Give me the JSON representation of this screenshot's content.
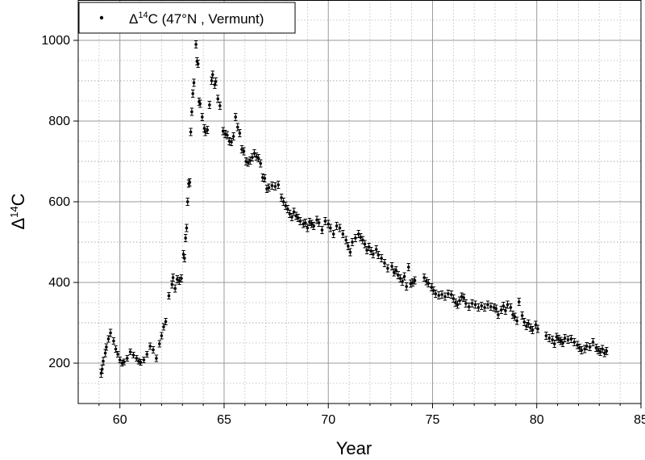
{
  "chart_data": {
    "type": "scatter",
    "title": "",
    "xlabel": "Year",
    "ylabel": {
      "base": "Δ",
      "sup": "14",
      "tail": "C"
    },
    "xlim": [
      58,
      85
    ],
    "ylim": [
      100,
      1100
    ],
    "xticks": [
      "60",
      "65",
      "70",
      "75",
      "80",
      "85"
    ],
    "yticks": [
      "200",
      "400",
      "600",
      "800",
      "1000"
    ],
    "grid": true,
    "error_bars": true,
    "legend": {
      "position": "top-left",
      "entry": {
        "base": "Δ",
        "sup": "14",
        "tail": "C (47°N , Vermunt)"
      }
    },
    "series": [
      {
        "name": "Δ14C (47°N , Vermunt)",
        "color": "#000000",
        "points": [
          [
            59.1,
            175,
            10
          ],
          [
            59.15,
            185,
            10
          ],
          [
            59.2,
            205,
            9
          ],
          [
            59.3,
            225,
            9
          ],
          [
            59.35,
            240,
            8
          ],
          [
            59.45,
            260,
            8
          ],
          [
            59.55,
            275,
            9
          ],
          [
            59.7,
            255,
            8
          ],
          [
            59.8,
            235,
            8
          ],
          [
            59.9,
            222,
            7
          ],
          [
            60.0,
            208,
            7
          ],
          [
            60.1,
            200,
            7
          ],
          [
            60.2,
            203,
            7
          ],
          [
            60.35,
            212,
            7
          ],
          [
            60.5,
            228,
            7
          ],
          [
            60.65,
            220,
            7
          ],
          [
            60.8,
            212,
            7
          ],
          [
            60.9,
            205,
            7
          ],
          [
            61.0,
            202,
            7
          ],
          [
            61.15,
            208,
            7
          ],
          [
            61.3,
            222,
            7
          ],
          [
            61.45,
            242,
            8
          ],
          [
            61.6,
            233,
            8
          ],
          [
            61.75,
            212,
            8
          ],
          [
            61.9,
            248,
            8
          ],
          [
            62.0,
            268,
            8
          ],
          [
            62.1,
            290,
            8
          ],
          [
            62.2,
            303,
            8
          ],
          [
            62.35,
            367,
            8
          ],
          [
            62.5,
            395,
            9
          ],
          [
            62.55,
            412,
            9
          ],
          [
            62.65,
            385,
            9
          ],
          [
            62.75,
            408,
            9
          ],
          [
            62.85,
            404,
            9
          ],
          [
            62.95,
            410,
            9
          ],
          [
            63.05,
            470,
            9
          ],
          [
            63.1,
            460,
            9
          ],
          [
            63.15,
            510,
            9
          ],
          [
            63.2,
            535,
            9
          ],
          [
            63.25,
            600,
            9
          ],
          [
            63.3,
            645,
            9
          ],
          [
            63.35,
            648,
            9
          ],
          [
            63.4,
            773,
            9
          ],
          [
            63.45,
            823,
            9
          ],
          [
            63.5,
            868,
            9
          ],
          [
            63.55,
            895,
            9
          ],
          [
            63.65,
            990,
            9
          ],
          [
            63.7,
            948,
            9
          ],
          [
            63.75,
            942,
            9
          ],
          [
            63.8,
            848,
            9
          ],
          [
            63.85,
            843,
            9
          ],
          [
            63.95,
            810,
            9
          ],
          [
            64.05,
            782,
            9
          ],
          [
            64.1,
            773,
            9
          ],
          [
            64.2,
            778,
            9
          ],
          [
            64.3,
            840,
            9
          ],
          [
            64.4,
            900,
            9
          ],
          [
            64.45,
            915,
            9
          ],
          [
            64.55,
            890,
            9
          ],
          [
            64.6,
            898,
            9
          ],
          [
            64.7,
            855,
            9
          ],
          [
            64.8,
            838,
            9
          ],
          [
            64.95,
            775,
            9
          ],
          [
            65.05,
            768,
            9
          ],
          [
            65.15,
            765,
            9
          ],
          [
            65.25,
            750,
            9
          ],
          [
            65.35,
            748,
            9
          ],
          [
            65.45,
            762,
            9
          ],
          [
            65.55,
            810,
            9
          ],
          [
            65.65,
            785,
            9
          ],
          [
            65.75,
            770,
            9
          ],
          [
            65.85,
            730,
            9
          ],
          [
            65.95,
            725,
            9
          ],
          [
            66.05,
            700,
            9
          ],
          [
            66.15,
            697,
            9
          ],
          [
            66.25,
            702,
            9
          ],
          [
            66.35,
            710,
            9
          ],
          [
            66.45,
            720,
            9
          ],
          [
            66.55,
            712,
            9
          ],
          [
            66.65,
            708,
            9
          ],
          [
            66.75,
            695,
            9
          ],
          [
            66.85,
            660,
            9
          ],
          [
            66.95,
            658,
            9
          ],
          [
            67.05,
            632,
            9
          ],
          [
            67.15,
            635,
            9
          ],
          [
            67.3,
            640,
            9
          ],
          [
            67.45,
            638,
            9
          ],
          [
            67.6,
            642,
            9
          ],
          [
            67.75,
            610,
            9
          ],
          [
            67.85,
            600,
            9
          ],
          [
            67.95,
            590,
            9
          ],
          [
            68.05,
            582,
            9
          ],
          [
            68.15,
            570,
            9
          ],
          [
            68.25,
            562,
            9
          ],
          [
            68.35,
            575,
            9
          ],
          [
            68.45,
            565,
            9
          ],
          [
            68.55,
            560,
            9
          ],
          [
            68.65,
            552,
            9
          ],
          [
            68.8,
            545,
            9
          ],
          [
            68.9,
            548,
            9
          ],
          [
            69.0,
            535,
            9
          ],
          [
            69.1,
            550,
            9
          ],
          [
            69.2,
            545,
            9
          ],
          [
            69.3,
            540,
            9
          ],
          [
            69.45,
            555,
            9
          ],
          [
            69.55,
            548,
            9
          ],
          [
            69.7,
            530,
            9
          ],
          [
            69.85,
            552,
            9
          ],
          [
            70.0,
            545,
            9
          ],
          [
            70.1,
            535,
            9
          ],
          [
            70.25,
            520,
            9
          ],
          [
            70.4,
            540,
            9
          ],
          [
            70.55,
            535,
            9
          ],
          [
            70.7,
            520,
            9
          ],
          [
            70.85,
            505,
            9
          ],
          [
            70.95,
            490,
            9
          ],
          [
            71.05,
            475,
            9
          ],
          [
            71.15,
            500,
            9
          ],
          [
            71.3,
            510,
            9
          ],
          [
            71.45,
            520,
            9
          ],
          [
            71.55,
            512,
            9
          ],
          [
            71.65,
            505,
            9
          ],
          [
            71.75,
            495,
            9
          ],
          [
            71.85,
            480,
            9
          ],
          [
            71.95,
            488,
            9
          ],
          [
            72.05,
            478,
            9
          ],
          [
            72.15,
            470,
            9
          ],
          [
            72.3,
            482,
            9
          ],
          [
            72.4,
            468,
            9
          ],
          [
            72.55,
            460,
            9
          ],
          [
            72.7,
            448,
            9
          ],
          [
            72.85,
            435,
            9
          ],
          [
            73.05,
            440,
            9
          ],
          [
            73.15,
            425,
            9
          ],
          [
            73.25,
            430,
            9
          ],
          [
            73.35,
            418,
            9
          ],
          [
            73.45,
            410,
            9
          ],
          [
            73.55,
            402,
            9
          ],
          [
            73.65,
            415,
            9
          ],
          [
            73.75,
            390,
            9
          ],
          [
            73.85,
            438,
            9
          ],
          [
            73.95,
            397,
            9
          ],
          [
            74.05,
            400,
            9
          ],
          [
            74.15,
            405,
            9
          ],
          [
            74.6,
            412,
            9
          ],
          [
            74.7,
            403,
            9
          ],
          [
            74.8,
            398,
            9
          ],
          [
            74.95,
            388,
            9
          ],
          [
            75.05,
            380,
            9
          ],
          [
            75.15,
            372,
            9
          ],
          [
            75.3,
            368,
            9
          ],
          [
            75.45,
            370,
            9
          ],
          [
            75.6,
            365,
            9
          ],
          [
            75.75,
            372,
            9
          ],
          [
            75.9,
            370,
            9
          ],
          [
            76.0,
            360,
            9
          ],
          [
            76.1,
            350,
            9
          ],
          [
            76.2,
            345,
            9
          ],
          [
            76.3,
            355,
            9
          ],
          [
            76.4,
            365,
            9
          ],
          [
            76.5,
            362,
            9
          ],
          [
            76.6,
            348,
            9
          ],
          [
            76.75,
            340,
            9
          ],
          [
            76.9,
            348,
            9
          ],
          [
            77.05,
            345,
            9
          ],
          [
            77.2,
            338,
            9
          ],
          [
            77.35,
            342,
            9
          ],
          [
            77.5,
            338,
            9
          ],
          [
            77.65,
            345,
            9
          ],
          [
            77.8,
            340,
            9
          ],
          [
            77.95,
            338,
            9
          ],
          [
            78.05,
            335,
            9
          ],
          [
            78.15,
            320,
            9
          ],
          [
            78.3,
            332,
            9
          ],
          [
            78.4,
            342,
            9
          ],
          [
            78.5,
            330,
            9
          ],
          [
            78.6,
            345,
            9
          ],
          [
            78.75,
            338,
            9
          ],
          [
            78.85,
            320,
            9
          ],
          [
            78.95,
            315,
            9
          ],
          [
            79.05,
            305,
            9
          ],
          [
            79.15,
            352,
            9
          ],
          [
            79.3,
            318,
            9
          ],
          [
            79.4,
            302,
            9
          ],
          [
            79.5,
            292,
            9
          ],
          [
            79.6,
            298,
            9
          ],
          [
            79.7,
            288,
            9
          ],
          [
            79.8,
            282,
            9
          ],
          [
            79.95,
            295,
            9
          ],
          [
            80.05,
            285,
            9
          ],
          [
            80.45,
            268,
            9
          ],
          [
            80.6,
            262,
            9
          ],
          [
            80.75,
            258,
            9
          ],
          [
            80.85,
            248,
            9
          ],
          [
            80.95,
            265,
            9
          ],
          [
            81.05,
            260,
            9
          ],
          [
            81.15,
            255,
            9
          ],
          [
            81.25,
            250,
            9
          ],
          [
            81.35,
            262,
            9
          ],
          [
            81.5,
            258,
            9
          ],
          [
            81.65,
            260,
            9
          ],
          [
            81.8,
            252,
            9
          ],
          [
            81.95,
            245,
            9
          ],
          [
            82.05,
            238,
            9
          ],
          [
            82.15,
            232,
            9
          ],
          [
            82.3,
            235,
            9
          ],
          [
            82.4,
            242,
            9
          ],
          [
            82.55,
            240,
            9
          ],
          [
            82.7,
            252,
            9
          ],
          [
            82.85,
            238,
            9
          ],
          [
            82.95,
            232,
            9
          ],
          [
            83.05,
            228,
            9
          ],
          [
            83.15,
            235,
            9
          ],
          [
            83.25,
            225,
            9
          ],
          [
            83.35,
            230,
            9
          ]
        ]
      }
    ]
  }
}
